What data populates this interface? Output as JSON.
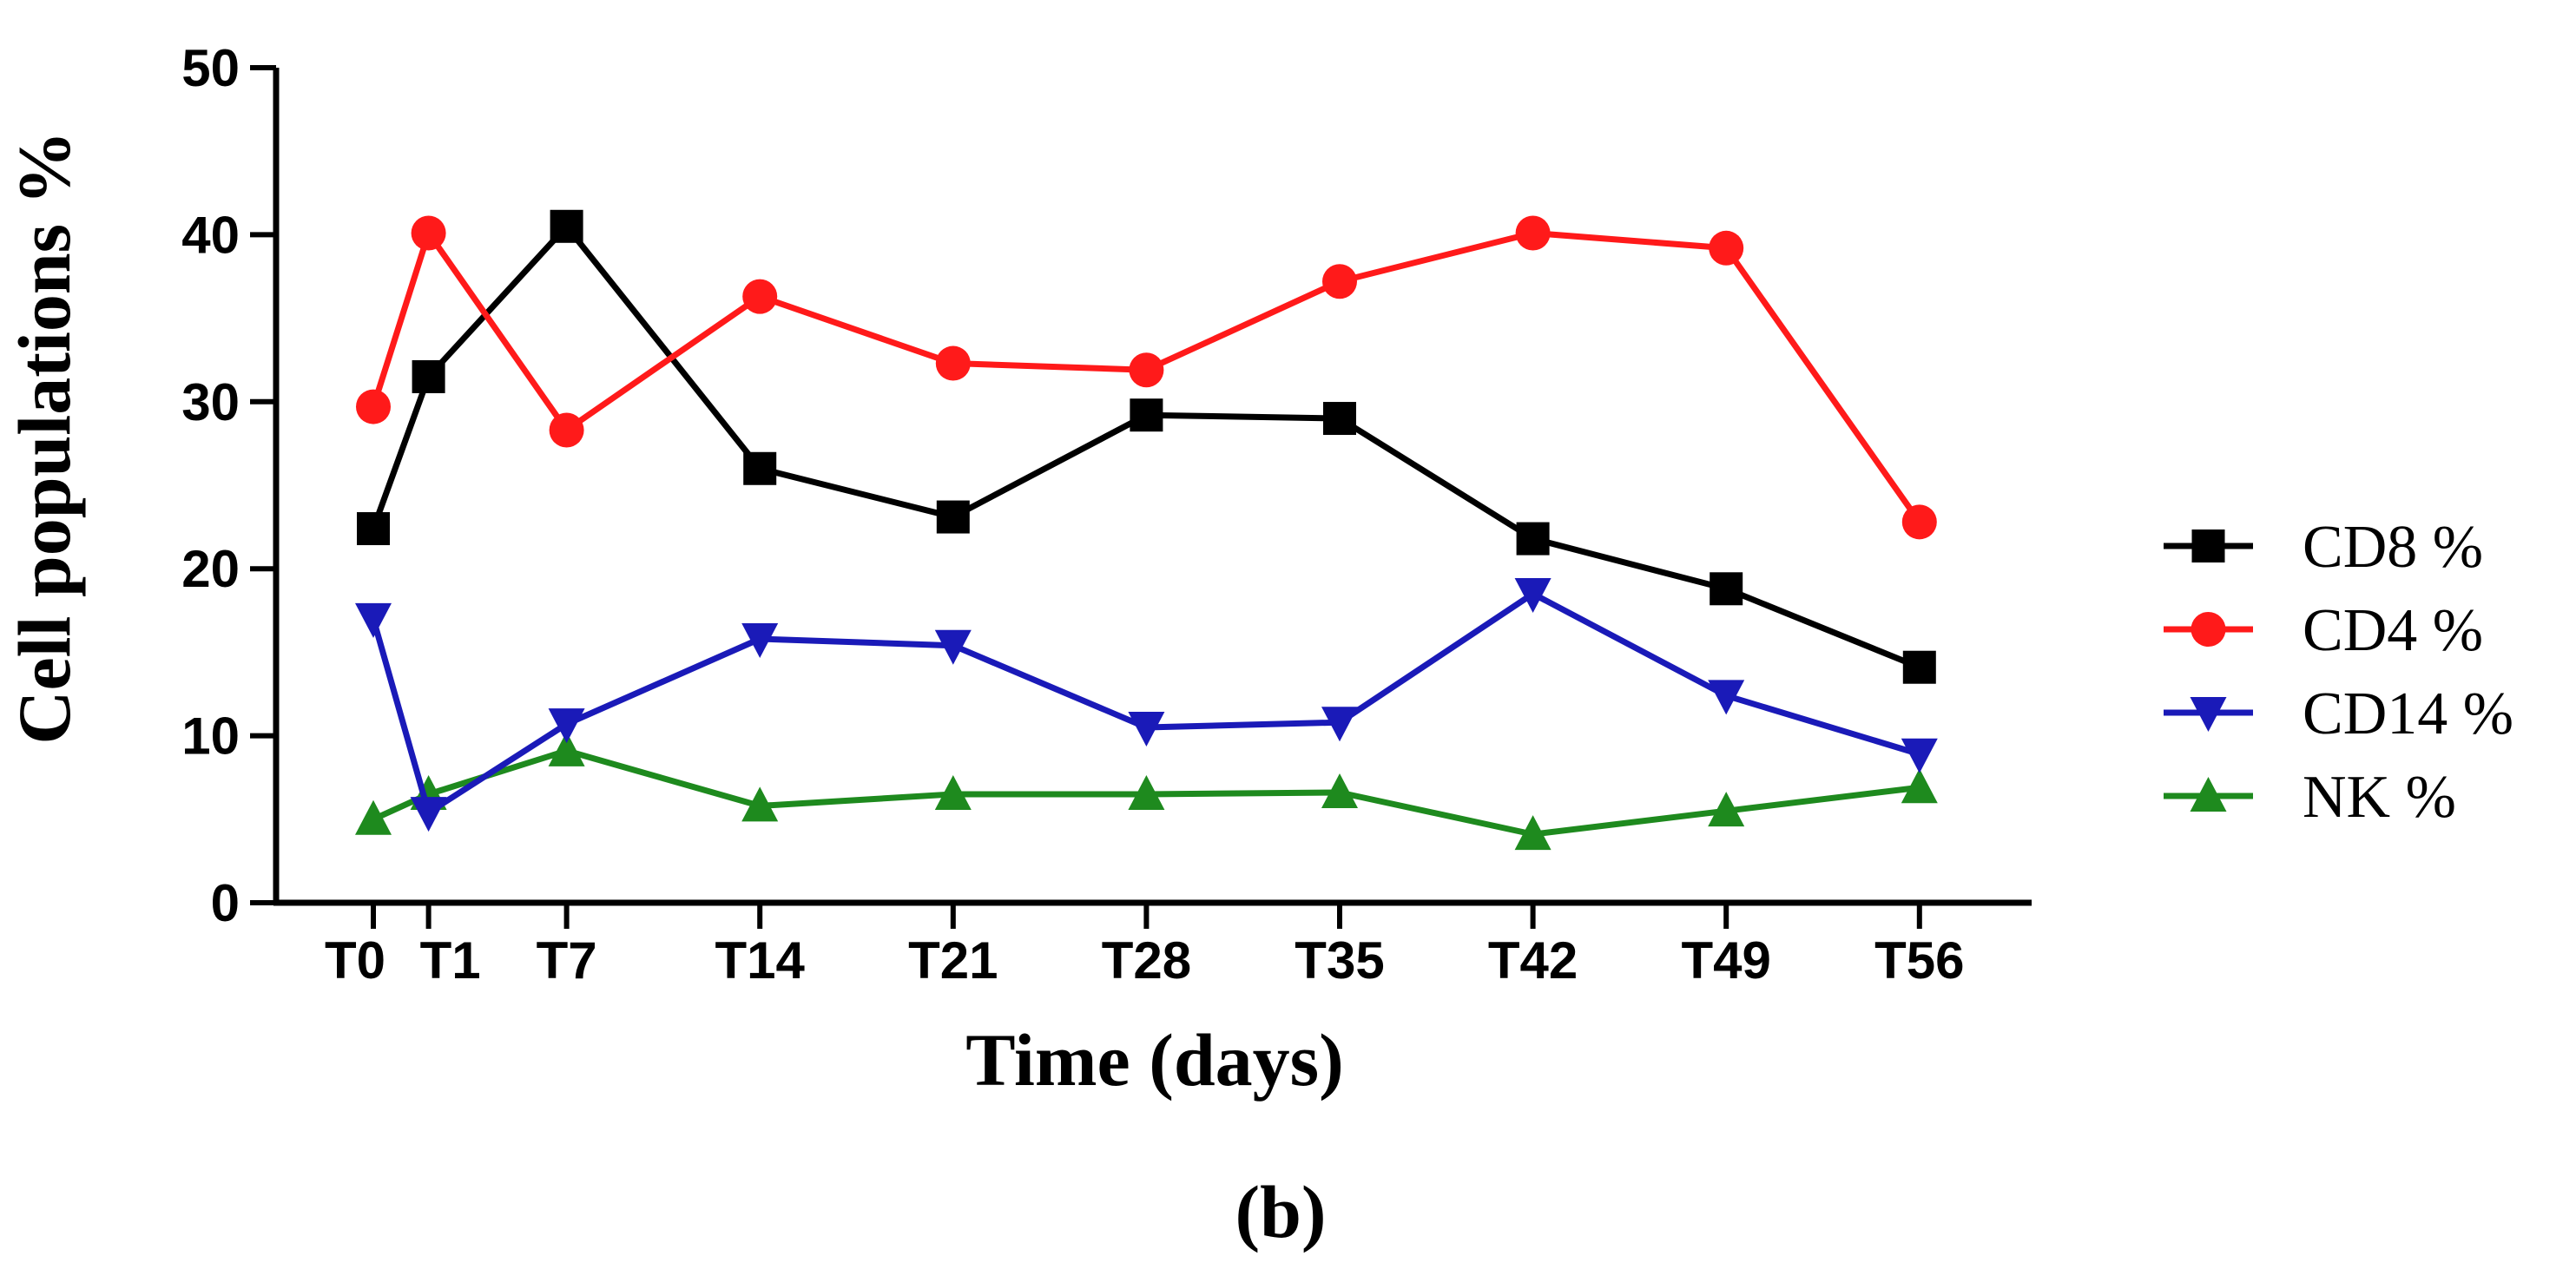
{
  "chart_data": {
    "type": "line",
    "title": "",
    "xlabel": "Time (days)",
    "ylabel": "Cell populations %",
    "caption": "(b)",
    "x_days": [
      0,
      2,
      7,
      14,
      21,
      28,
      35,
      42,
      49,
      56
    ],
    "xtick_labels": [
      "T0",
      "T1",
      "T7",
      "T14",
      "T21",
      "T28",
      "T35",
      "T42",
      "T49",
      "T56"
    ],
    "xlim": [
      -4,
      60
    ],
    "ylim": [
      0,
      50
    ],
    "yticks": [
      0,
      10,
      20,
      30,
      40,
      50
    ],
    "ytick_labels": [
      "0",
      "10",
      "20",
      "30",
      "40",
      "50"
    ],
    "grid": false,
    "legend_position": "right",
    "series": [
      {
        "name": "CD8 %",
        "color": "#000000",
        "marker": "square",
        "values": [
          22.4,
          31.5,
          40.5,
          26.0,
          23.1,
          29.2,
          29.0,
          21.8,
          18.8,
          14.1
        ]
      },
      {
        "name": "CD4 %",
        "color": "#ff1a1a",
        "marker": "circle",
        "values": [
          29.7,
          40.1,
          28.3,
          36.3,
          32.3,
          31.9,
          37.2,
          40.1,
          39.2,
          22.8
        ]
      },
      {
        "name": "CD14 %",
        "color": "#1a1ab8",
        "marker": "triangle-down",
        "values": [
          17.0,
          5.4,
          10.7,
          15.8,
          15.4,
          10.5,
          10.8,
          18.5,
          12.4,
          8.9
        ]
      },
      {
        "name": "NK %",
        "color": "#1e8a1e",
        "marker": "triangle-up",
        "values": [
          5.0,
          6.5,
          9.1,
          5.8,
          6.5,
          6.5,
          6.6,
          4.1,
          5.5,
          6.9
        ]
      }
    ]
  }
}
